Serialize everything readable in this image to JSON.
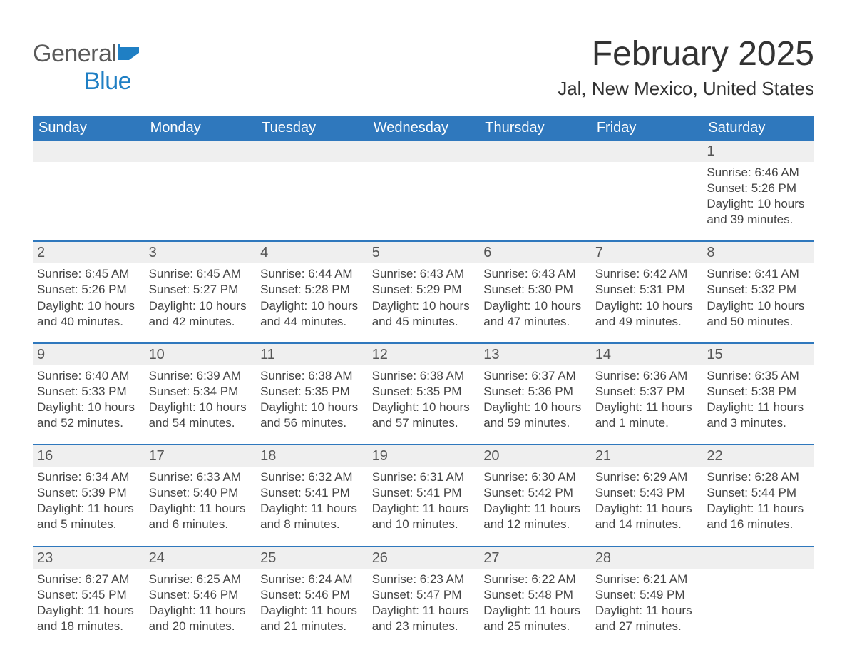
{
  "brand": {
    "part1": "General",
    "part2": "Blue",
    "icon_color": "#1f7fc4",
    "text_color_gray": "#5a5a5a"
  },
  "title": "February 2025",
  "location": "Jal, New Mexico, United States",
  "colors": {
    "header_bg": "#2f78bd",
    "header_text": "#ffffff",
    "row_border": "#2f78bd",
    "daynum_bg": "#efefef",
    "body_text": "#444444",
    "page_bg": "#ffffff"
  },
  "weekdays": [
    "Sunday",
    "Monday",
    "Tuesday",
    "Wednesday",
    "Thursday",
    "Friday",
    "Saturday"
  ],
  "weeks": [
    [
      null,
      null,
      null,
      null,
      null,
      null,
      {
        "n": "1",
        "sunrise": "Sunrise: 6:46 AM",
        "sunset": "Sunset: 5:26 PM",
        "daylight": "Daylight: 10 hours and 39 minutes."
      }
    ],
    [
      {
        "n": "2",
        "sunrise": "Sunrise: 6:45 AM",
        "sunset": "Sunset: 5:26 PM",
        "daylight": "Daylight: 10 hours and 40 minutes."
      },
      {
        "n": "3",
        "sunrise": "Sunrise: 6:45 AM",
        "sunset": "Sunset: 5:27 PM",
        "daylight": "Daylight: 10 hours and 42 minutes."
      },
      {
        "n": "4",
        "sunrise": "Sunrise: 6:44 AM",
        "sunset": "Sunset: 5:28 PM",
        "daylight": "Daylight: 10 hours and 44 minutes."
      },
      {
        "n": "5",
        "sunrise": "Sunrise: 6:43 AM",
        "sunset": "Sunset: 5:29 PM",
        "daylight": "Daylight: 10 hours and 45 minutes."
      },
      {
        "n": "6",
        "sunrise": "Sunrise: 6:43 AM",
        "sunset": "Sunset: 5:30 PM",
        "daylight": "Daylight: 10 hours and 47 minutes."
      },
      {
        "n": "7",
        "sunrise": "Sunrise: 6:42 AM",
        "sunset": "Sunset: 5:31 PM",
        "daylight": "Daylight: 10 hours and 49 minutes."
      },
      {
        "n": "8",
        "sunrise": "Sunrise: 6:41 AM",
        "sunset": "Sunset: 5:32 PM",
        "daylight": "Daylight: 10 hours and 50 minutes."
      }
    ],
    [
      {
        "n": "9",
        "sunrise": "Sunrise: 6:40 AM",
        "sunset": "Sunset: 5:33 PM",
        "daylight": "Daylight: 10 hours and 52 minutes."
      },
      {
        "n": "10",
        "sunrise": "Sunrise: 6:39 AM",
        "sunset": "Sunset: 5:34 PM",
        "daylight": "Daylight: 10 hours and 54 minutes."
      },
      {
        "n": "11",
        "sunrise": "Sunrise: 6:38 AM",
        "sunset": "Sunset: 5:35 PM",
        "daylight": "Daylight: 10 hours and 56 minutes."
      },
      {
        "n": "12",
        "sunrise": "Sunrise: 6:38 AM",
        "sunset": "Sunset: 5:35 PM",
        "daylight": "Daylight: 10 hours and 57 minutes."
      },
      {
        "n": "13",
        "sunrise": "Sunrise: 6:37 AM",
        "sunset": "Sunset: 5:36 PM",
        "daylight": "Daylight: 10 hours and 59 minutes."
      },
      {
        "n": "14",
        "sunrise": "Sunrise: 6:36 AM",
        "sunset": "Sunset: 5:37 PM",
        "daylight": "Daylight: 11 hours and 1 minute."
      },
      {
        "n": "15",
        "sunrise": "Sunrise: 6:35 AM",
        "sunset": "Sunset: 5:38 PM",
        "daylight": "Daylight: 11 hours and 3 minutes."
      }
    ],
    [
      {
        "n": "16",
        "sunrise": "Sunrise: 6:34 AM",
        "sunset": "Sunset: 5:39 PM",
        "daylight": "Daylight: 11 hours and 5 minutes."
      },
      {
        "n": "17",
        "sunrise": "Sunrise: 6:33 AM",
        "sunset": "Sunset: 5:40 PM",
        "daylight": "Daylight: 11 hours and 6 minutes."
      },
      {
        "n": "18",
        "sunrise": "Sunrise: 6:32 AM",
        "sunset": "Sunset: 5:41 PM",
        "daylight": "Daylight: 11 hours and 8 minutes."
      },
      {
        "n": "19",
        "sunrise": "Sunrise: 6:31 AM",
        "sunset": "Sunset: 5:41 PM",
        "daylight": "Daylight: 11 hours and 10 minutes."
      },
      {
        "n": "20",
        "sunrise": "Sunrise: 6:30 AM",
        "sunset": "Sunset: 5:42 PM",
        "daylight": "Daylight: 11 hours and 12 minutes."
      },
      {
        "n": "21",
        "sunrise": "Sunrise: 6:29 AM",
        "sunset": "Sunset: 5:43 PM",
        "daylight": "Daylight: 11 hours and 14 minutes."
      },
      {
        "n": "22",
        "sunrise": "Sunrise: 6:28 AM",
        "sunset": "Sunset: 5:44 PM",
        "daylight": "Daylight: 11 hours and 16 minutes."
      }
    ],
    [
      {
        "n": "23",
        "sunrise": "Sunrise: 6:27 AM",
        "sunset": "Sunset: 5:45 PM",
        "daylight": "Daylight: 11 hours and 18 minutes."
      },
      {
        "n": "24",
        "sunrise": "Sunrise: 6:25 AM",
        "sunset": "Sunset: 5:46 PM",
        "daylight": "Daylight: 11 hours and 20 minutes."
      },
      {
        "n": "25",
        "sunrise": "Sunrise: 6:24 AM",
        "sunset": "Sunset: 5:46 PM",
        "daylight": "Daylight: 11 hours and 21 minutes."
      },
      {
        "n": "26",
        "sunrise": "Sunrise: 6:23 AM",
        "sunset": "Sunset: 5:47 PM",
        "daylight": "Daylight: 11 hours and 23 minutes."
      },
      {
        "n": "27",
        "sunrise": "Sunrise: 6:22 AM",
        "sunset": "Sunset: 5:48 PM",
        "daylight": "Daylight: 11 hours and 25 minutes."
      },
      {
        "n": "28",
        "sunrise": "Sunrise: 6:21 AM",
        "sunset": "Sunset: 5:49 PM",
        "daylight": "Daylight: 11 hours and 27 minutes."
      },
      null
    ]
  ]
}
